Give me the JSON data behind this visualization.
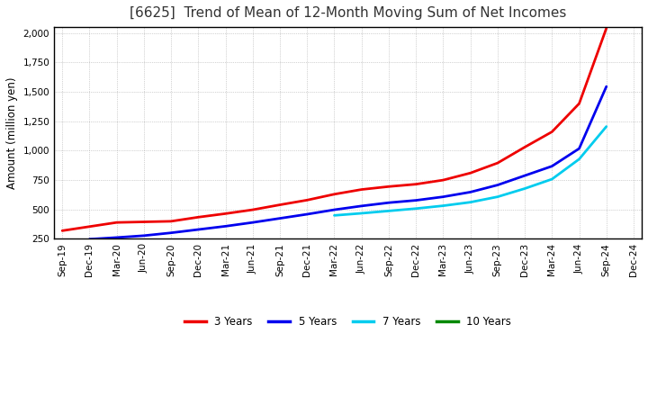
{
  "title": "[6625]  Trend of Mean of 12-Month Moving Sum of Net Incomes",
  "ylabel": "Amount (million yen)",
  "background_color": "#ffffff",
  "grid_color": "#888888",
  "xlim_start": "Sep-19",
  "xlim_end": "Dec-24",
  "ylim": [
    250,
    2050
  ],
  "yticks": [
    250,
    500,
    750,
    1000,
    1250,
    1500,
    1750,
    2000
  ],
  "x_labels": [
    "Sep-19",
    "Dec-19",
    "Mar-20",
    "Jun-20",
    "Sep-20",
    "Dec-20",
    "Mar-21",
    "Jun-21",
    "Sep-21",
    "Dec-21",
    "Mar-22",
    "Jun-22",
    "Sep-22",
    "Dec-22",
    "Mar-23",
    "Jun-23",
    "Sep-23",
    "Dec-23",
    "Mar-24",
    "Jun-24",
    "Sep-24",
    "Dec-24"
  ],
  "series": {
    "3 Years": {
      "color": "#ee0000",
      "data": {
        "Sep-19": 320,
        "Dec-19": 355,
        "Mar-20": 390,
        "Jun-20": 395,
        "Sep-20": 400,
        "Dec-20": 435,
        "Mar-21": 465,
        "Jun-21": 498,
        "Sep-21": 540,
        "Dec-21": 580,
        "Mar-22": 630,
        "Jun-22": 670,
        "Sep-22": 695,
        "Dec-22": 715,
        "Mar-23": 750,
        "Jun-23": 810,
        "Sep-23": 895,
        "Dec-23": 1030,
        "Mar-24": 1160,
        "Jun-24": 1400,
        "Sep-24": 2040
      }
    },
    "5 Years": {
      "color": "#0000ee",
      "data": {
        "Dec-19": 248,
        "Mar-20": 262,
        "Jun-20": 278,
        "Sep-20": 302,
        "Dec-20": 330,
        "Mar-21": 358,
        "Jun-21": 390,
        "Sep-21": 425,
        "Dec-21": 460,
        "Mar-22": 498,
        "Jun-22": 530,
        "Sep-22": 558,
        "Dec-22": 578,
        "Mar-23": 608,
        "Jun-23": 648,
        "Sep-23": 708,
        "Dec-23": 788,
        "Mar-24": 868,
        "Jun-24": 1018,
        "Sep-24": 1545
      }
    },
    "7 Years": {
      "color": "#00ccee",
      "data": {
        "Mar-22": 450,
        "Jun-22": 468,
        "Sep-22": 488,
        "Dec-22": 508,
        "Mar-23": 532,
        "Jun-23": 562,
        "Sep-23": 608,
        "Dec-23": 678,
        "Mar-24": 758,
        "Jun-24": 928,
        "Sep-24": 1205
      }
    },
    "10 Years": {
      "color": "#008800",
      "data": {}
    }
  },
  "legend_labels": [
    "3 Years",
    "5 Years",
    "7 Years",
    "10 Years"
  ],
  "legend_colors": [
    "#ee0000",
    "#0000ee",
    "#00ccee",
    "#008800"
  ],
  "title_fontsize": 11,
  "axis_label_fontsize": 8.5,
  "tick_fontsize": 7.5,
  "legend_fontsize": 8.5
}
